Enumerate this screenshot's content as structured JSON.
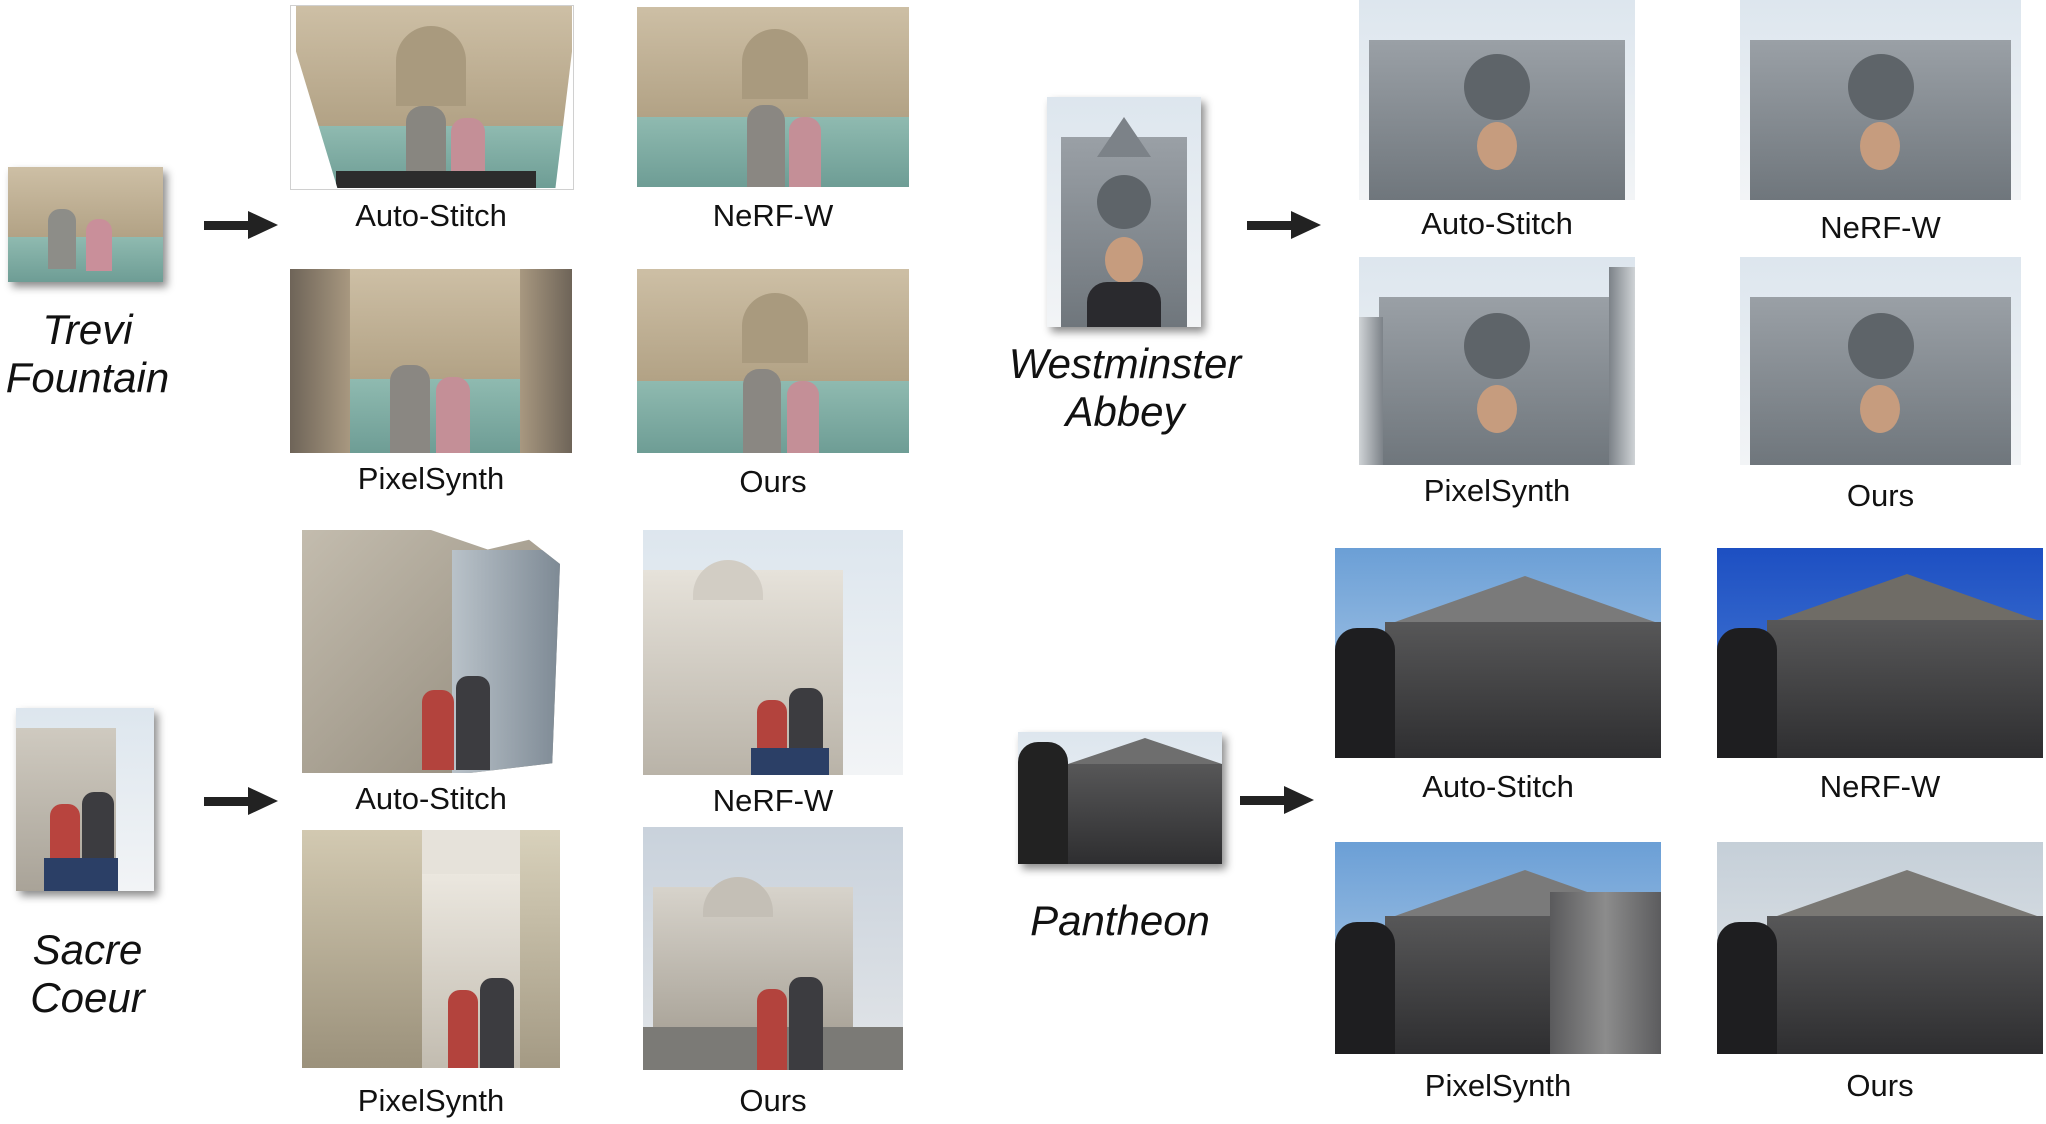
{
  "scenes": {
    "trevi": {
      "name_line1": "Trevi",
      "name_line2": "Fountain",
      "cap_autostitch": "Auto-Stitch",
      "cap_nerfw": "NeRF-W",
      "cap_pixelsynth": "PixelSynth",
      "cap_ours": "Ours"
    },
    "westminster": {
      "name_line1": "Westminster",
      "name_line2": "Abbey",
      "cap_autostitch": "Auto-Stitch",
      "cap_nerfw": "NeRF-W",
      "cap_pixelsynth": "PixelSynth",
      "cap_ours": "Ours"
    },
    "sacre": {
      "name_line1": "Sacre",
      "name_line2": "Coeur",
      "cap_autostitch": "Auto-Stitch",
      "cap_nerfw": "NeRF-W",
      "cap_pixelsynth": "PixelSynth",
      "cap_ours": "Ours"
    },
    "pantheon": {
      "name_line1": "Pantheon",
      "cap_autostitch": "Auto-Stitch",
      "cap_nerfw": "NeRF-W",
      "cap_pixelsynth": "PixelSynth",
      "cap_ours": "Ours"
    }
  },
  "icons": {
    "arrow": "right-arrow-icon"
  },
  "colors": {
    "arrow": "#222222",
    "background": "#ffffff"
  }
}
